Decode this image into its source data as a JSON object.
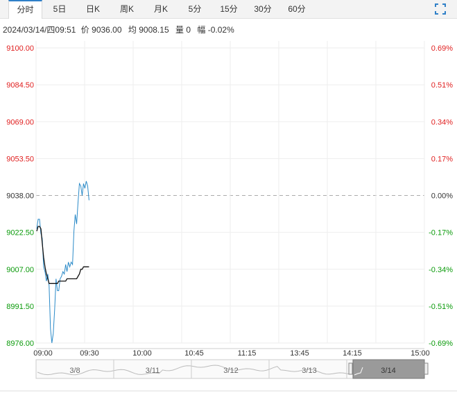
{
  "tabs": [
    {
      "label": "分时",
      "active": true
    },
    {
      "label": "5日",
      "active": false
    },
    {
      "label": "日K",
      "active": false
    },
    {
      "label": "周K",
      "active": false
    },
    {
      "label": "月K",
      "active": false
    },
    {
      "label": "5分",
      "active": false
    },
    {
      "label": "15分",
      "active": false
    },
    {
      "label": "30分",
      "active": false
    },
    {
      "label": "60分",
      "active": false
    }
  ],
  "fullscreen_icon": "expand-icon",
  "info": {
    "datetime": "2024/03/14/四09:51",
    "price_label": "价",
    "price": "9036.00",
    "avg_label": "均",
    "avg": "9008.15",
    "volume_label": "量",
    "volume": "0",
    "change_label": "幅",
    "change": "-0.02%"
  },
  "colors": {
    "up": "#e02020",
    "down": "#0a9a0a",
    "flat": "#333333",
    "price_line": "#2a8ac8",
    "avg_line": "#111111",
    "grid": "#eeeeee"
  },
  "chart_data": {
    "type": "line",
    "x_ticks": [
      "09:00",
      "09:30",
      "10:00",
      "10:45",
      "11:15",
      "13:45",
      "14:15",
      "15:00"
    ],
    "y_ticks_left": [
      "9100.00",
      "9084.50",
      "9069.00",
      "9053.50",
      "9038.00",
      "9022.50",
      "9007.00",
      "8991.50",
      "8976.00"
    ],
    "y_ticks_right": [
      "0.69%",
      "0.51%",
      "0.34%",
      "0.17%",
      "0.00%",
      "-0.17%",
      "-0.34%",
      "-0.51%",
      "-0.69%"
    ],
    "ylim": [
      8976.0,
      9100.0
    ],
    "prev_close": 9038.0,
    "series": [
      {
        "values": [
          9024,
          9028,
          9028,
          9022,
          9020,
          9008,
          9006,
          9002,
          9005,
          9000,
          8982,
          8976,
          8980,
          8990,
          9003,
          8998,
          8998,
          9003,
          9004,
          9006,
          9005,
          9009,
          9006,
          9010,
          9008,
          9010,
          9009,
          9023,
          9030,
          9026,
          9035,
          9043,
          9042,
          9038,
          9043,
          9041,
          9044,
          9042,
          9036
        ]
      },
      {
        "values": [
          9023,
          9025,
          9025,
          9024,
          9018,
          9012,
          9008,
          9005,
          9003,
          9001,
          9001,
          9001,
          9001,
          9001,
          9001,
          9001,
          9002,
          9002,
          9002,
          9002,
          9002,
          9002,
          9003,
          9003,
          9003,
          9003,
          9003,
          9003,
          9003,
          9003,
          9004,
          9005,
          9007,
          9007,
          9008,
          9008,
          9008,
          9008,
          9008
        ]
      }
    ]
  },
  "navigator": {
    "dates": [
      "3/8",
      "3/11",
      "3/12",
      "3/13",
      "3/14"
    ],
    "left_handle_icon": "left-handle-icon",
    "right_handle_icon": "right-handle-icon"
  }
}
